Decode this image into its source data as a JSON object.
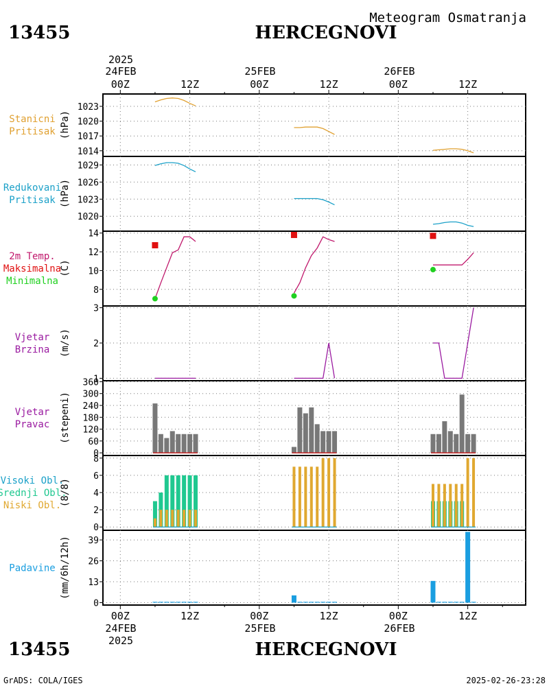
{
  "header": {
    "station_id": "13455",
    "station_name": "HERCEGNOVI",
    "subtitle": "Meteogram Osmatranja"
  },
  "footer": {
    "station_id": "13455",
    "station_name": "HERCEGNOVI",
    "credit": "GrADS: COLA/IGES",
    "timestamp": "2025-02-26-23:28"
  },
  "time_axis": {
    "top_year": "2025",
    "bottom_year": "2025",
    "date_labels": [
      "24FEB",
      "25FEB",
      "26FEB"
    ],
    "hour_labels": [
      "00Z",
      "12Z",
      "00Z",
      "12Z",
      "00Z",
      "12Z"
    ],
    "hour_values": [
      0,
      12,
      24,
      36,
      48,
      60
    ],
    "range_hours": [
      -3,
      70
    ]
  },
  "colors": {
    "station_pressure": "#e0a030",
    "reduced_pressure": "#1aa0c8",
    "temperature": "#c0186c",
    "tmax": "#e01010",
    "tmin": "#20d020",
    "wind_speed": "#9a1aa0",
    "wind_dir": "#787878",
    "wind_dir_base": "#c02020",
    "high_cloud": "#1aa0c8",
    "mid_cloud": "#20c890",
    "low_cloud": "#e0a830",
    "precip": "#1a9ee0"
  },
  "panels": {
    "station_pressure": {
      "labels": [
        "Stanicni",
        "Pritisak"
      ],
      "unit": "(hPa)"
    },
    "reduced_pressure": {
      "labels": [
        "Redukovani",
        "Pritisak"
      ],
      "unit": "(hPa)"
    },
    "temperature": {
      "labels": [
        "2m Temp.",
        "Maksimalna",
        "Minimalna"
      ],
      "unit": "(C)"
    },
    "wind_speed": {
      "labels": [
        "Vjetar",
        "Brzina"
      ],
      "unit": "(m/s)"
    },
    "wind_dir": {
      "labels": [
        "Vjetar",
        "Pravac"
      ],
      "unit": "(stepeni)"
    },
    "clouds": {
      "labels": [
        "Visoki Obl.",
        "Srednji Obl.",
        "Niski Obl."
      ],
      "unit": "(8/8)"
    },
    "precip": {
      "labels": [
        "Padavine"
      ],
      "unit": "(mm/6h/12h)"
    }
  },
  "chart_data": [
    {
      "type": "line",
      "panel": "station_pressure",
      "ylim": [
        1013,
        1025.5
      ],
      "yticks": [
        1014,
        1017,
        1020,
        1023
      ],
      "series": [
        {
          "segments": [
            {
              "x": [
                6,
                7,
                8,
                9,
                10,
                11,
                12,
                13
              ],
              "y": [
                1023.9,
                1024.3,
                1024.6,
                1024.7,
                1024.6,
                1024.2,
                1023.6,
                1023.1
              ]
            },
            {
              "x": [
                30,
                31,
                32,
                33,
                34,
                35,
                36,
                37
              ],
              "y": [
                1018.7,
                1018.7,
                1018.8,
                1018.8,
                1018.8,
                1018.5,
                1017.9,
                1017.3
              ]
            },
            {
              "x": [
                54,
                55,
                56,
                57,
                58,
                59,
                60,
                61
              ],
              "y": [
                1014.1,
                1014.2,
                1014.3,
                1014.4,
                1014.4,
                1014.3,
                1014.0,
                1013.6
              ]
            }
          ]
        }
      ]
    },
    {
      "type": "line",
      "panel": "reduced_pressure",
      "ylim": [
        1017.5,
        1030.5
      ],
      "yticks": [
        1020,
        1023,
        1026,
        1029
      ],
      "series": [
        {
          "segments": [
            {
              "x": [
                6,
                7,
                8,
                9,
                10,
                11,
                12,
                13
              ],
              "y": [
                1028.9,
                1029.2,
                1029.4,
                1029.4,
                1029.3,
                1028.9,
                1028.3,
                1027.8
              ]
            },
            {
              "x": [
                30,
                31,
                32,
                33,
                34,
                35,
                36,
                37
              ],
              "y": [
                1023.1,
                1023.1,
                1023.1,
                1023.1,
                1023.1,
                1022.9,
                1022.5,
                1022.0
              ]
            },
            {
              "x": [
                54,
                55,
                56,
                57,
                58,
                59,
                60,
                61
              ],
              "y": [
                1018.6,
                1018.7,
                1018.9,
                1019.0,
                1019.0,
                1018.8,
                1018.4,
                1018.2
              ]
            }
          ]
        }
      ]
    },
    {
      "type": "line",
      "panel": "temperature",
      "ylim": [
        6.3,
        14.2
      ],
      "yticks": [
        8,
        10,
        12,
        14
      ],
      "series": [
        {
          "segments": [
            {
              "x": [
                6,
                7,
                8,
                9,
                10,
                11,
                12,
                13
              ],
              "y": [
                7.0,
                8.7,
                10.3,
                11.9,
                12.2,
                13.6,
                13.6,
                13.1
              ]
            },
            {
              "x": [
                30,
                31,
                32,
                33,
                34,
                35,
                36,
                37
              ],
              "y": [
                7.6,
                8.7,
                10.3,
                11.6,
                12.4,
                13.6,
                13.3,
                13.1
              ]
            },
            {
              "x": [
                54,
                55,
                56,
                57,
                58,
                59,
                60,
                61
              ],
              "y": [
                10.6,
                10.6,
                10.6,
                10.6,
                10.6,
                10.6,
                11.2,
                11.9
              ]
            }
          ]
        }
      ],
      "tmax": [
        {
          "x": 6,
          "y": 12.7
        },
        {
          "x": 30,
          "y": 13.8
        },
        {
          "x": 54,
          "y": 13.7
        }
      ],
      "tmin": [
        {
          "x": 6,
          "y": 7.0
        },
        {
          "x": 30,
          "y": 7.3
        },
        {
          "x": 54,
          "y": 10.1
        }
      ]
    },
    {
      "type": "line",
      "panel": "wind_speed",
      "ylim": [
        0.95,
        3.05
      ],
      "yticks": [
        1,
        2,
        3
      ],
      "series": [
        {
          "segments": [
            {
              "x": [
                6,
                7,
                8,
                9,
                10,
                11,
                12,
                13
              ],
              "y": [
                1,
                1,
                1,
                1,
                1,
                1,
                1,
                1
              ]
            },
            {
              "x": [
                30,
                31,
                32,
                33,
                34,
                35,
                36,
                37
              ],
              "y": [
                1,
                1,
                1,
                1,
                1,
                1,
                2,
                1
              ]
            },
            {
              "x": [
                54,
                55,
                56,
                57,
                58,
                59,
                60,
                61
              ],
              "y": [
                2,
                2,
                1,
                1,
                1,
                1,
                2,
                3
              ]
            }
          ]
        }
      ]
    },
    {
      "type": "bar",
      "panel": "wind_dir",
      "ylim": [
        -10,
        365
      ],
      "yticks": [
        0,
        60,
        120,
        180,
        240,
        300,
        360
      ],
      "x": [
        6,
        7,
        8,
        9,
        10,
        11,
        12,
        13,
        30,
        31,
        32,
        33,
        34,
        35,
        36,
        37,
        54,
        55,
        56,
        57,
        58,
        59,
        60,
        61
      ],
      "values": [
        250,
        95,
        75,
        110,
        95,
        95,
        95,
        95,
        30,
        230,
        200,
        230,
        145,
        110,
        110,
        110,
        95,
        95,
        160,
        110,
        95,
        295,
        95,
        95
      ]
    },
    {
      "type": "bar",
      "panel": "clouds",
      "ylim": [
        -0.3,
        8.3
      ],
      "yticks": [
        0,
        2,
        4,
        6,
        8
      ],
      "x": [
        6,
        7,
        8,
        9,
        10,
        11,
        12,
        13,
        30,
        31,
        32,
        33,
        34,
        35,
        36,
        37,
        54,
        55,
        56,
        57,
        58,
        59,
        60,
        61
      ],
      "series": [
        {
          "name": "Visoki Obl.",
          "values": [
            0,
            0,
            0,
            0,
            0,
            0,
            0,
            0,
            0,
            0,
            0,
            0,
            0,
            0,
            0,
            0,
            0,
            0,
            0,
            0,
            0,
            0,
            0,
            0
          ]
        },
        {
          "name": "Srednji Obl.",
          "values": [
            3,
            4,
            6,
            6,
            6,
            6,
            6,
            6,
            0,
            0,
            0,
            0,
            0,
            0,
            0,
            0,
            3,
            3,
            3,
            3,
            3,
            3,
            0,
            0
          ]
        },
        {
          "name": "Niski Obl.",
          "values": [
            1,
            2,
            2,
            2,
            2,
            2,
            2,
            2,
            7,
            7,
            7,
            7,
            7,
            8,
            8,
            8,
            5,
            5,
            5,
            5,
            5,
            5,
            8,
            8
          ]
        }
      ]
    },
    {
      "type": "bar",
      "panel": "precip",
      "ylim": [
        -1.5,
        45
      ],
      "yticks": [
        0,
        13,
        26,
        39
      ],
      "x": [
        6,
        7,
        8,
        9,
        10,
        11,
        12,
        13,
        30,
        31,
        32,
        33,
        34,
        35,
        36,
        37,
        54,
        55,
        56,
        57,
        58,
        59,
        60,
        61
      ],
      "values": [
        0.5,
        0.5,
        0.5,
        0.5,
        0.5,
        0.5,
        0.5,
        0.5,
        4.5,
        0.5,
        0.5,
        0.5,
        0.5,
        0.5,
        0.5,
        0.5,
        13.5,
        0.5,
        0.5,
        0.5,
        0.5,
        0.5,
        44,
        0.5
      ]
    }
  ]
}
